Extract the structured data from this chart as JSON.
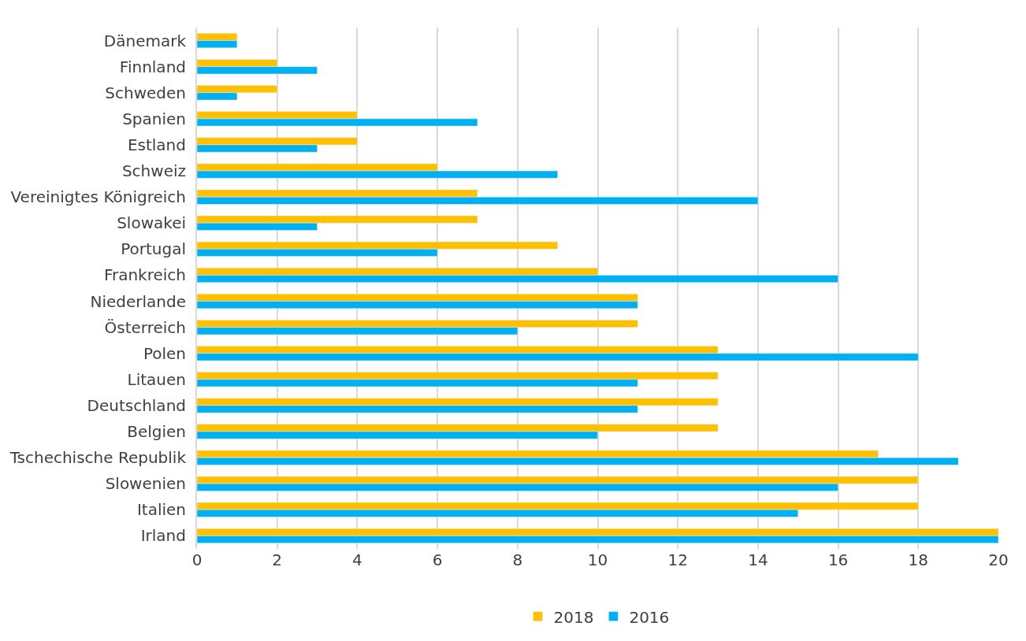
{
  "chart_data": {
    "type": "bar",
    "orientation": "horizontal",
    "categories": [
      "Dänemark",
      "Finnland",
      "Schweden",
      "Spanien",
      "Estland",
      "Schweiz",
      "Vereinigtes Königreich",
      "Slowakei",
      "Portugal",
      "Frankreich",
      "Niederlande",
      "Österreich",
      "Polen",
      "Litauen",
      "Deutschland",
      "Belgien",
      "Tschechische Republik",
      "Slowenien",
      "Italien",
      "Irland"
    ],
    "series": [
      {
        "name": "2018",
        "color": "#ffc000",
        "values": [
          1,
          2,
          2,
          4,
          4,
          6,
          7,
          7,
          9,
          10,
          11,
          11,
          13,
          13,
          13,
          13,
          17,
          18,
          18,
          20
        ]
      },
      {
        "name": "2016",
        "color": "#00b0f0",
        "values": [
          1,
          3,
          1,
          7,
          3,
          9,
          14,
          3,
          6,
          16,
          11,
          8,
          18,
          11,
          11,
          10,
          19,
          16,
          15,
          20
        ]
      }
    ],
    "xlim": [
      0,
      20
    ],
    "xticks": [
      0,
      2,
      4,
      6,
      8,
      10,
      12,
      14,
      16,
      18,
      20
    ],
    "grid": "x",
    "legend": "bottom"
  }
}
